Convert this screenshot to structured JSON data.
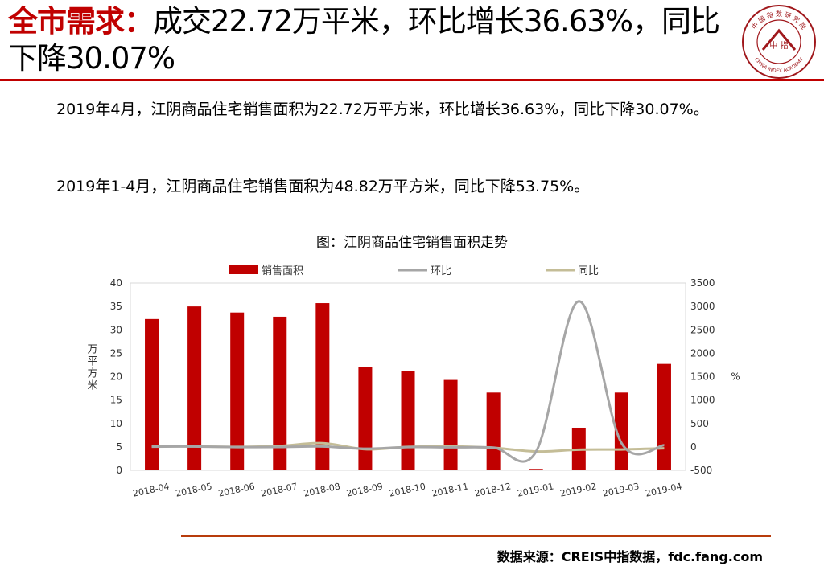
{
  "header": {
    "title_highlight": "全市需求：",
    "title_rest": "成交22.72万平米，环比增长36.63%，同比下降30.07%"
  },
  "logo": {
    "text_top": "中 国 指 数 研 究 院",
    "text_bottom": "CHINA INDEX ACADEMY",
    "text_center": "中 指"
  },
  "paragraphs": [
    "2019年4月，江阴商品住宅销售面积为22.72万平方米，环比增长36.63%，同比下降30.07%。",
    "2019年1-4月，江阴商品住宅销售面积为48.82万平方米，同比下降53.75%。"
  ],
  "chart_title": "图：江阴商品住宅销售面积走势",
  "chart_data": {
    "type": "bar",
    "categories": [
      "2018-04",
      "2018-05",
      "2018-06",
      "2018-07",
      "2018-08",
      "2018-09",
      "2018-10",
      "2018-11",
      "2018-12",
      "2019-01",
      "2019-02",
      "2019-03",
      "2019-04"
    ],
    "series": [
      {
        "name": "销售面积",
        "type": "bar",
        "axis": "left",
        "color": "#c00000",
        "values": [
          32.3,
          35.0,
          33.7,
          32.8,
          35.7,
          22.0,
          21.2,
          19.3,
          16.6,
          0.3,
          9.1,
          16.6,
          22.72
        ]
      },
      {
        "name": "环比",
        "type": "line",
        "axis": "right",
        "color": "#a6a6a6",
        "values": [
          5,
          8,
          -4,
          -3,
          9,
          -38,
          -4,
          -9,
          -14,
          -98,
          3110,
          82,
          36.63
        ]
      },
      {
        "name": "同比",
        "type": "line",
        "axis": "right",
        "color": "#c4bd97",
        "values": [
          20,
          10,
          0,
          20,
          80,
          -50,
          0,
          10,
          -20,
          -98,
          -60,
          -55,
          -30.07
        ]
      }
    ],
    "ylabel": "万平方米",
    "y2label": "%",
    "ylim": [
      0,
      40
    ],
    "yticks": [
      "0",
      "5",
      "10",
      "15",
      "20",
      "25",
      "30",
      "35",
      "40"
    ],
    "y2lim": [
      -500,
      3500
    ],
    "y2ticks": [
      "-500",
      "0",
      "500",
      "1000",
      "1500",
      "2000",
      "2500",
      "3000",
      "3500"
    ],
    "legend": "top"
  },
  "footer": {
    "source": "数据来源：CREIS中指数据，fdc.fang.com"
  }
}
